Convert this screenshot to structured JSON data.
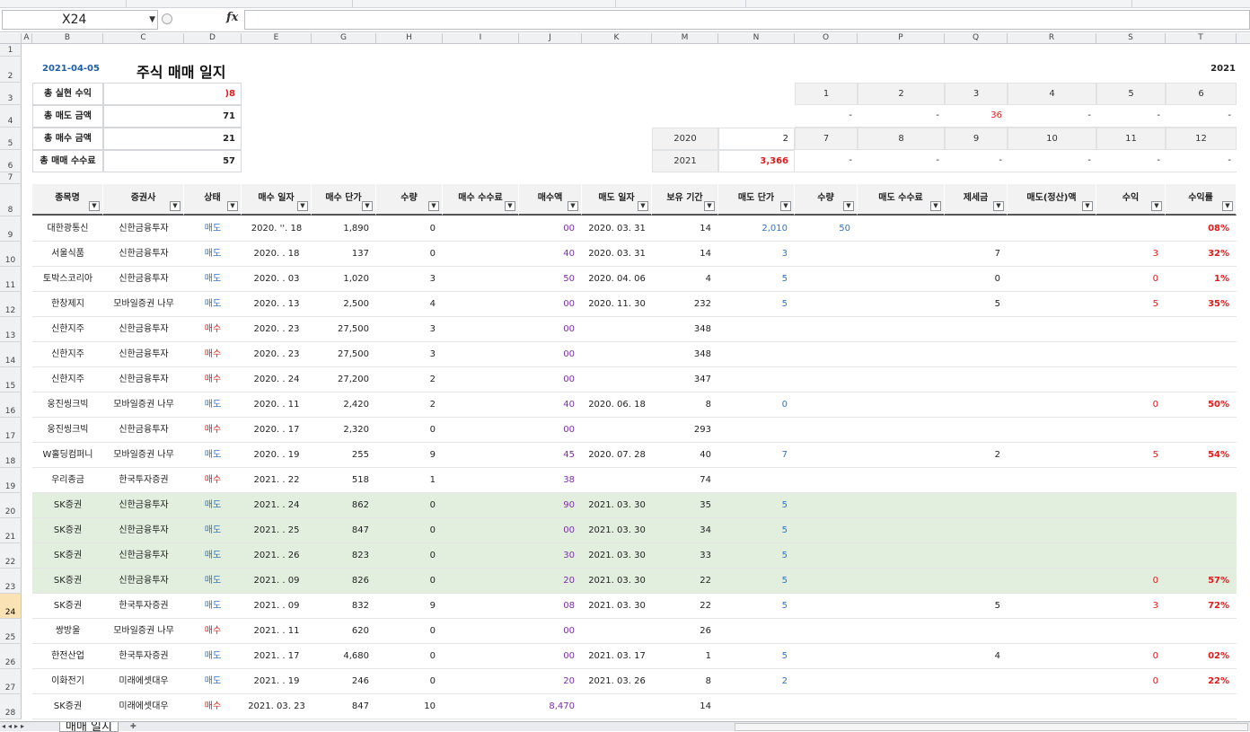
{
  "app": {
    "name_box": "X24",
    "fx_label": "fx",
    "active_row": "24",
    "sheet_tab": "매매 일지"
  },
  "columns": [
    "A",
    "B",
    "C",
    "D",
    "E",
    "G",
    "H",
    "I",
    "J",
    "K",
    "M",
    "N",
    "O",
    "P",
    "Q",
    "R",
    "S",
    "T"
  ],
  "row_numbers": [
    "1",
    "2",
    "3",
    "4",
    "5",
    "6",
    "7",
    "8",
    "9",
    "10",
    "11",
    "12",
    "13",
    "14",
    "15",
    "16",
    "17",
    "18",
    "19",
    "20",
    "21",
    "22",
    "23",
    "24",
    "25",
    "26",
    "27",
    "28"
  ],
  "header": {
    "date": "2021-04-05",
    "title": "주식 매매 일지",
    "year": "2021"
  },
  "summary": [
    {
      "label": "총 실현 수익",
      "value": ")8"
    },
    {
      "label": "총 매도 금액",
      "value": "71"
    },
    {
      "label": "총 매수 금액",
      "value": "21"
    },
    {
      "label": "총 매매 수수료",
      "value": "57"
    }
  ],
  "monthly": {
    "months_top": [
      "1",
      "2",
      "3",
      "4",
      "5",
      "6"
    ],
    "values_top": [
      "-",
      "-",
      "36",
      "-",
      "-",
      "-"
    ],
    "label_2020": "2020",
    "value_2020": "2",
    "months_bottom": [
      "7",
      "8",
      "9",
      "10",
      "11",
      "12"
    ],
    "label_2021": "2021",
    "value_2021": "3,366",
    "values_bottom": [
      "-",
      "-",
      "-",
      "-",
      "-",
      "-"
    ]
  },
  "table": {
    "headers": [
      "종목명",
      "증권사",
      "상태",
      "매수 일자",
      "매수 단가",
      "수량",
      "매수 수수료",
      "매수액",
      "매도 일자",
      "보유 기간",
      "매도 단가",
      "수량",
      "매도 수수료",
      "제세금",
      "매도(정산)액",
      "수익",
      "수익률"
    ],
    "rows": [
      {
        "name": "대한광통신",
        "broker": "신한금융투자",
        "status": "매도",
        "buy_date": "2020. ''. 18",
        "buy_price": "1,890",
        "qty": "0",
        "fee": "",
        "amount": "00",
        "sell_date": "2020. 03. 31",
        "hold": "14",
        "sell_price": "2,010",
        "sell_qty": "50",
        "sell_fee": "",
        "tax": "",
        "settle": "",
        "profit": "",
        "rate": "08%",
        "green": false
      },
      {
        "name": "서울식품",
        "broker": "신한금융투자",
        "status": "매도",
        "buy_date": "2020.  . 18",
        "buy_price": "137",
        "qty": "0",
        "fee": "",
        "amount": "40",
        "sell_date": "2020. 03. 31",
        "hold": "14",
        "sell_price": "3",
        "sell_qty": "",
        "sell_fee": "",
        "tax": "7",
        "settle": "",
        "profit": "3",
        "rate": "32%",
        "green": false
      },
      {
        "name": "토박스코리아",
        "broker": "신한금융투자",
        "status": "매도",
        "buy_date": "2020.  . 03",
        "buy_price": "1,020",
        "qty": "3",
        "fee": "",
        "amount": "50",
        "sell_date": "2020. 04. 06",
        "hold": "4",
        "sell_price": "5",
        "sell_qty": "",
        "sell_fee": "",
        "tax": "0",
        "settle": "",
        "profit": "0",
        "rate": "1%",
        "green": false
      },
      {
        "name": "한창제지",
        "broker": "모바일증권 나무",
        "status": "매도",
        "buy_date": "2020.  . 13",
        "buy_price": "2,500",
        "qty": "4",
        "fee": "",
        "amount": "00",
        "sell_date": "2020. 11. 30",
        "hold": "232",
        "sell_price": "5",
        "sell_qty": "",
        "sell_fee": "",
        "tax": "5",
        "settle": "",
        "profit": "5",
        "rate": "35%",
        "green": false
      },
      {
        "name": "신한지주",
        "broker": "신한금융투자",
        "status": "매수",
        "buy_date": "2020.  . 23",
        "buy_price": "27,500",
        "qty": "3",
        "fee": "",
        "amount": "00",
        "sell_date": "",
        "hold": "348",
        "sell_price": "",
        "sell_qty": "",
        "sell_fee": "",
        "tax": "",
        "settle": "",
        "profit": "",
        "rate": "",
        "green": false
      },
      {
        "name": "신한지주",
        "broker": "신한금융투자",
        "status": "매수",
        "buy_date": "2020.  . 23",
        "buy_price": "27,500",
        "qty": "3",
        "fee": "",
        "amount": "00",
        "sell_date": "",
        "hold": "348",
        "sell_price": "",
        "sell_qty": "",
        "sell_fee": "",
        "tax": "",
        "settle": "",
        "profit": "",
        "rate": "",
        "green": false
      },
      {
        "name": "신한지주",
        "broker": "신한금융투자",
        "status": "매수",
        "buy_date": "2020.  . 24",
        "buy_price": "27,200",
        "qty": "2",
        "fee": "",
        "amount": "00",
        "sell_date": "",
        "hold": "347",
        "sell_price": "",
        "sell_qty": "",
        "sell_fee": "",
        "tax": "",
        "settle": "",
        "profit": "",
        "rate": "",
        "green": false
      },
      {
        "name": "웅진씽크빅",
        "broker": "모바일증권 나무",
        "status": "매도",
        "buy_date": "2020.  . 11",
        "buy_price": "2,420",
        "qty": "2",
        "fee": "",
        "amount": "40",
        "sell_date": "2020. 06. 18",
        "hold": "8",
        "sell_price": "0",
        "sell_qty": "",
        "sell_fee": "",
        "tax": "",
        "settle": "",
        "profit": "0",
        "rate": "50%",
        "green": false
      },
      {
        "name": "웅진씽크빅",
        "broker": "신한금융투자",
        "status": "매수",
        "buy_date": "2020.  . 17",
        "buy_price": "2,320",
        "qty": "0",
        "fee": "",
        "amount": "00",
        "sell_date": "",
        "hold": "293",
        "sell_price": "",
        "sell_qty": "",
        "sell_fee": "",
        "tax": "",
        "settle": "",
        "profit": "",
        "rate": "",
        "green": false
      },
      {
        "name": "W홀딩컴퍼니",
        "broker": "모바일증권 나무",
        "status": "매도",
        "buy_date": "2020.  . 19",
        "buy_price": "255",
        "qty": "9",
        "fee": "",
        "amount": "45",
        "sell_date": "2020. 07. 28",
        "hold": "40",
        "sell_price": "7",
        "sell_qty": "",
        "sell_fee": "",
        "tax": "2",
        "settle": "",
        "profit": "5",
        "rate": "54%",
        "green": false
      },
      {
        "name": "우리종금",
        "broker": "한국투자증권",
        "status": "매수",
        "buy_date": "2021.  . 22",
        "buy_price": "518",
        "qty": "1",
        "fee": "",
        "amount": "38",
        "sell_date": "",
        "hold": "74",
        "sell_price": "",
        "sell_qty": "",
        "sell_fee": "",
        "tax": "",
        "settle": "",
        "profit": "",
        "rate": "",
        "green": false
      },
      {
        "name": "SK증권",
        "broker": "신한금융투자",
        "status": "매도",
        "buy_date": "2021.  . 24",
        "buy_price": "862",
        "qty": "0",
        "fee": "",
        "amount": "90",
        "sell_date": "2021. 03. 30",
        "hold": "35",
        "sell_price": "5",
        "sell_qty": "",
        "sell_fee": "",
        "tax": "",
        "settle": "",
        "profit": "",
        "rate": "",
        "green": true
      },
      {
        "name": "SK증권",
        "broker": "신한금융투자",
        "status": "매도",
        "buy_date": "2021.  . 25",
        "buy_price": "847",
        "qty": "0",
        "fee": "",
        "amount": "00",
        "sell_date": "2021. 03. 30",
        "hold": "34",
        "sell_price": "5",
        "sell_qty": "",
        "sell_fee": "",
        "tax": "",
        "settle": "",
        "profit": "",
        "rate": "",
        "green": true
      },
      {
        "name": "SK증권",
        "broker": "신한금융투자",
        "status": "매도",
        "buy_date": "2021.  . 26",
        "buy_price": "823",
        "qty": "0",
        "fee": "",
        "amount": "30",
        "sell_date": "2021. 03. 30",
        "hold": "33",
        "sell_price": "5",
        "sell_qty": "",
        "sell_fee": "",
        "tax": "",
        "settle": "",
        "profit": "",
        "rate": "",
        "green": true
      },
      {
        "name": "SK증권",
        "broker": "신한금융투자",
        "status": "매도",
        "buy_date": "2021.  . 09",
        "buy_price": "826",
        "qty": "0",
        "fee": "",
        "amount": "20",
        "sell_date": "2021. 03. 30",
        "hold": "22",
        "sell_price": "5",
        "sell_qty": "",
        "sell_fee": "",
        "tax": "",
        "settle": "",
        "profit": "0",
        "rate": "57%",
        "green": true
      },
      {
        "name": "SK증권",
        "broker": "한국투자증권",
        "status": "매도",
        "buy_date": "2021.  . 09",
        "buy_price": "832",
        "qty": "9",
        "fee": "",
        "amount": "08",
        "sell_date": "2021. 03. 30",
        "hold": "22",
        "sell_price": "5",
        "sell_qty": "",
        "sell_fee": "",
        "tax": "5",
        "settle": "",
        "profit": "3",
        "rate": "72%",
        "green": false
      },
      {
        "name": "쌍방울",
        "broker": "모바일증권 나무",
        "status": "매수",
        "buy_date": "2021.  . 11",
        "buy_price": "620",
        "qty": "0",
        "fee": "",
        "amount": "00",
        "sell_date": "",
        "hold": "26",
        "sell_price": "",
        "sell_qty": "",
        "sell_fee": "",
        "tax": "",
        "settle": "",
        "profit": "",
        "rate": "",
        "green": false
      },
      {
        "name": "한전산업",
        "broker": "한국투자증권",
        "status": "매도",
        "buy_date": "2021.  . 17",
        "buy_price": "4,680",
        "qty": "0",
        "fee": "",
        "amount": "00",
        "sell_date": "2021. 03. 17",
        "hold": "1",
        "sell_price": "5",
        "sell_qty": "",
        "sell_fee": "",
        "tax": "4",
        "settle": "",
        "profit": "0",
        "rate": "02%",
        "green": false
      },
      {
        "name": "이화전기",
        "broker": "미래에셋대우",
        "status": "매도",
        "buy_date": "2021.  . 19",
        "buy_price": "246",
        "qty": "0",
        "fee": "",
        "amount": "20",
        "sell_date": "2021. 03. 26",
        "hold": "8",
        "sell_price": "2",
        "sell_qty": "",
        "sell_fee": "",
        "tax": "",
        "settle": "",
        "profit": "0",
        "rate": "22%",
        "green": false
      },
      {
        "name": "SK증권",
        "broker": "미래에셋대우",
        "status": "매수",
        "buy_date": "2021. 03. 23",
        "buy_price": "847",
        "qty": "10",
        "fee": "",
        "amount": "8,470",
        "sell_date": "",
        "hold": "14",
        "sell_price": "",
        "sell_qty": "",
        "sell_fee": "",
        "tax": "",
        "settle": "",
        "profit": "",
        "rate": "",
        "green": false
      }
    ]
  },
  "colors": {
    "date_blue": "#1f5ea8",
    "sell_blue": "#2e73c4",
    "buy_red": "#e01b1b",
    "amount_purple": "#7c2ea8",
    "row_green": "#e2efdf",
    "active_row_header": "#fbe2b4"
  }
}
